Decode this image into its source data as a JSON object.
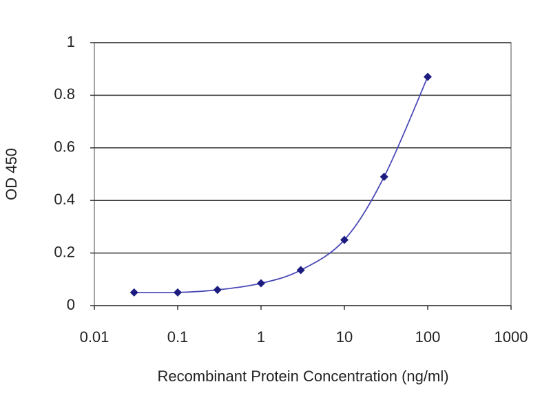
{
  "chart_data": {
    "type": "line",
    "x_label": "Recombinant Protein Concentration (ng/ml)",
    "y_label": "OD 450",
    "x": [
      0.03,
      0.1,
      0.3,
      1,
      3,
      10,
      30,
      100
    ],
    "series": [
      {
        "values": [
          0.05,
          0.05,
          0.06,
          0.085,
          0.135,
          0.25,
          0.49,
          0.87
        ],
        "color": "#1c1c80"
      }
    ],
    "line_color": "#4a4ab8",
    "xscale": "log",
    "xlim": [
      0.01,
      1000
    ],
    "xticks": [
      0.01,
      0.1,
      1,
      10,
      100,
      1000
    ],
    "ylim": [
      0,
      1
    ],
    "yticks": [
      0,
      0.2,
      0.4,
      0.6,
      0.8,
      1
    ],
    "grid": true
  }
}
